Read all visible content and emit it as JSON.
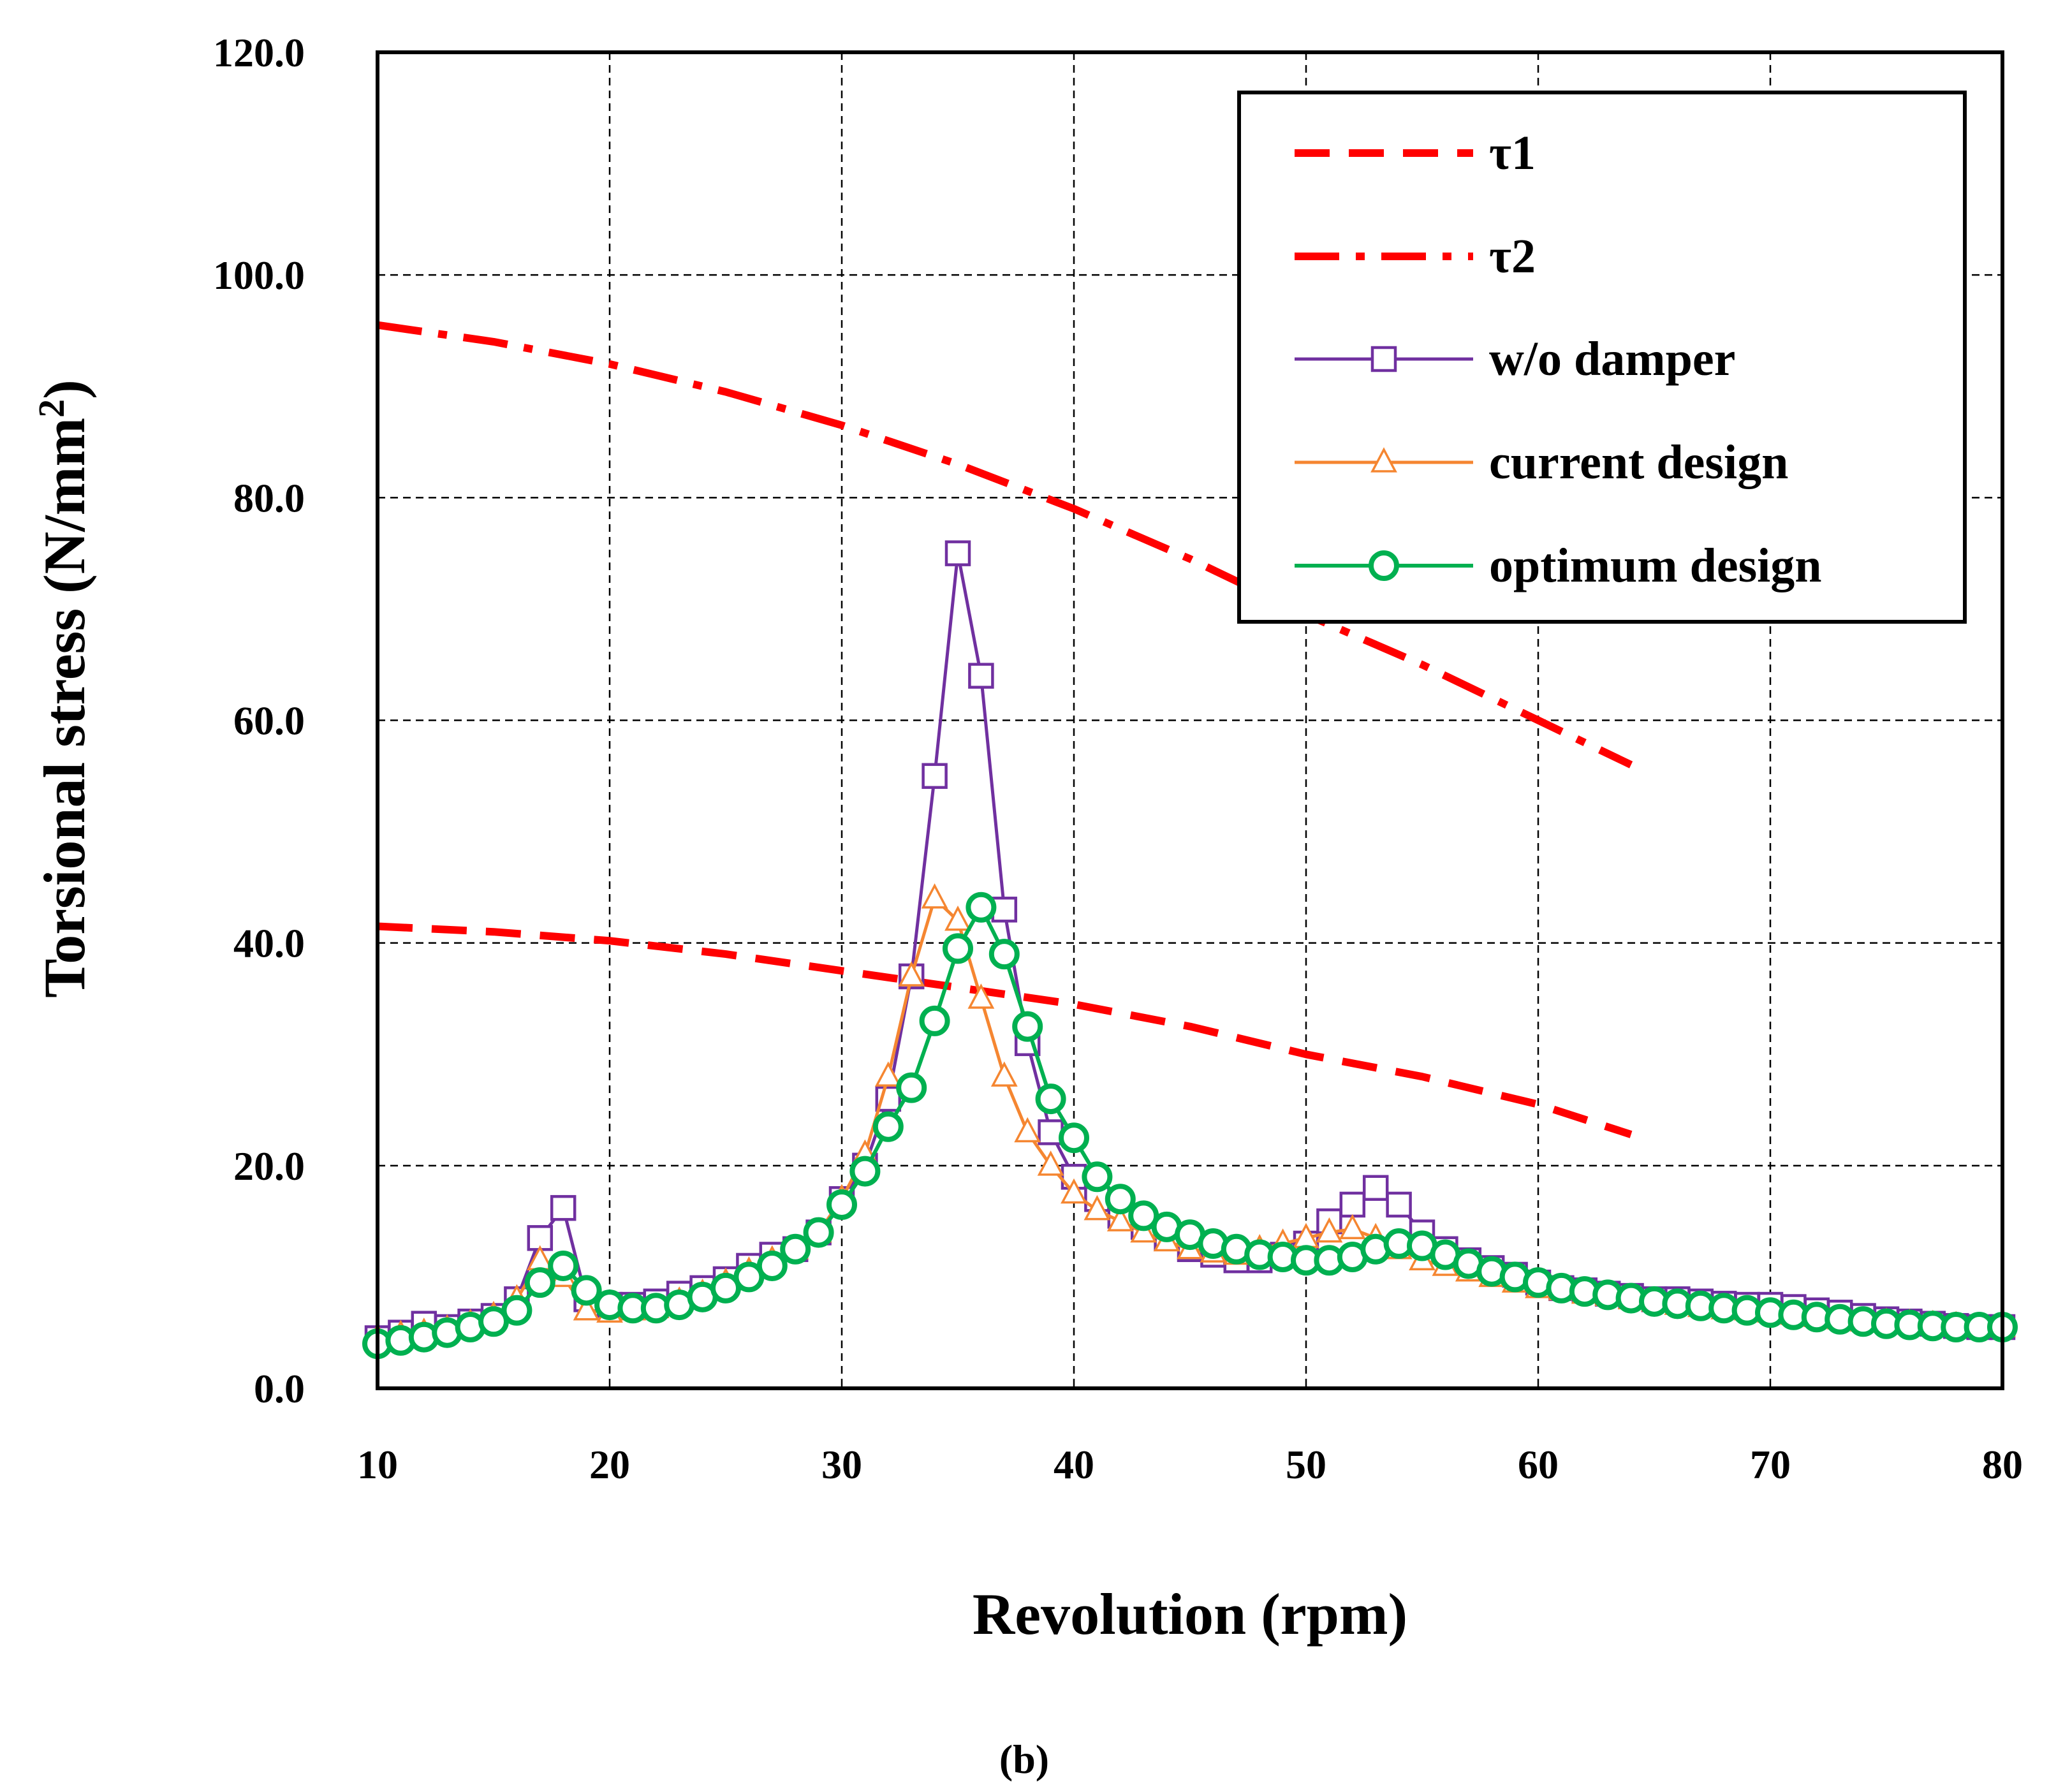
{
  "chart_data": {
    "type": "line",
    "caption": "(b)",
    "xlabel": "Revolution (rpm)",
    "ylabel": "Torsional stress (N/mm",
    "ylabel_sup": "2",
    "ylabel_close": ")",
    "xlim": [
      10,
      80
    ],
    "ylim": [
      0,
      120
    ],
    "xticks": [
      10,
      20,
      30,
      40,
      50,
      60,
      70,
      80
    ],
    "yticks": [
      0,
      20,
      40,
      60,
      80,
      100,
      120
    ],
    "ytick_labels": [
      "0.0",
      "20.0",
      "40.0",
      "60.0",
      "80.0",
      "100.0",
      "120.0"
    ],
    "grid": true,
    "legend_position": "top-right",
    "colors": {
      "tau": "#ff0000",
      "wo_damper": "#7030a0",
      "current": "#f58631",
      "optimum": "#00b050"
    },
    "series": [
      {
        "name": "τ1",
        "style": "dashed",
        "marker": "none",
        "x": [
          10,
          15,
          20,
          25,
          30,
          35,
          40,
          45,
          50,
          55,
          60,
          64
        ],
        "y": [
          41.5,
          41,
          40.2,
          39,
          37.5,
          36,
          34.5,
          32.5,
          30,
          28,
          25.5,
          22.8
        ]
      },
      {
        "name": "τ2",
        "style": "dashdot",
        "marker": "none",
        "x": [
          10,
          15,
          20,
          25,
          30,
          35,
          40,
          45,
          50,
          55,
          64
        ],
        "y": [
          95.5,
          94,
          92,
          89.5,
          86.5,
          83,
          79,
          74.5,
          69.5,
          65,
          56
        ]
      },
      {
        "name": "w/o damper",
        "style": "solid",
        "marker": "square",
        "x": [
          10,
          11,
          12,
          13,
          14,
          15,
          16,
          17,
          18,
          19,
          20,
          21,
          22,
          23,
          24,
          25,
          26,
          27,
          28,
          29,
          30,
          31,
          32,
          33,
          34,
          35,
          36,
          37,
          38,
          39,
          40,
          41,
          42,
          43,
          44,
          45,
          46,
          47,
          48,
          49,
          50,
          51,
          52,
          53,
          54,
          55,
          56,
          57,
          58,
          59,
          60,
          61,
          62,
          63,
          64,
          65,
          66,
          67,
          68,
          69,
          70,
          71,
          72,
          73,
          74,
          75,
          76,
          77,
          78,
          79,
          80
        ],
        "y": [
          4.5,
          5,
          5.8,
          5.5,
          6,
          6.5,
          8,
          13.5,
          16.2,
          8,
          7.5,
          7.5,
          7.8,
          8.5,
          9,
          9.8,
          11,
          12,
          12.5,
          14,
          17,
          20,
          26,
          37,
          55,
          75,
          64,
          43,
          31,
          23,
          19,
          17,
          15.5,
          14.5,
          13.5,
          12.5,
          12,
          11.5,
          11.5,
          12,
          13,
          15,
          16.5,
          18,
          16.5,
          14,
          12.5,
          11.5,
          10.8,
          10.2,
          9.5,
          9,
          8.8,
          8.5,
          8.3,
          8,
          8,
          7.8,
          7.6,
          7.5,
          7.5,
          7.3,
          7,
          6.8,
          6.5,
          6.2,
          6,
          5.8,
          5.6,
          5.5,
          5.5
        ]
      },
      {
        "name": "current design",
        "style": "solid",
        "marker": "triangle",
        "x": [
          10,
          11,
          12,
          13,
          14,
          15,
          16,
          17,
          18,
          19,
          20,
          21,
          22,
          23,
          24,
          25,
          26,
          27,
          28,
          29,
          30,
          31,
          32,
          33,
          34,
          35,
          36,
          37,
          38,
          39,
          40,
          41,
          42,
          43,
          44,
          45,
          46,
          47,
          48,
          49,
          50,
          51,
          52,
          53,
          54,
          55,
          56,
          57,
          58,
          59,
          60,
          61,
          62,
          63,
          64,
          65,
          66,
          67,
          68,
          69,
          70,
          71,
          72,
          73,
          74,
          75,
          76,
          77,
          78,
          79,
          80
        ],
        "y": [
          4.5,
          4.8,
          5,
          5.3,
          5.8,
          6.5,
          8,
          11.5,
          10,
          7,
          6.8,
          7,
          7.2,
          7.8,
          8.5,
          9.5,
          10.5,
          11.5,
          12.5,
          14,
          17,
          21,
          28,
          37,
          44,
          42,
          35,
          28,
          23,
          20,
          17.5,
          16,
          15,
          14,
          13.2,
          12.5,
          12.2,
          12,
          12.5,
          13,
          13.5,
          14,
          14.3,
          13.5,
          12.5,
          11.5,
          11,
          10.5,
          10,
          9.5,
          9,
          8.8,
          8.5,
          8.3,
          8,
          7.8,
          7.5,
          7.3,
          7.1,
          7,
          6.8,
          6.6,
          6.4,
          6.2,
          6,
          5.9,
          5.8,
          5.7,
          5.6,
          5.5,
          5.5
        ]
      },
      {
        "name": "optimum design",
        "style": "solid",
        "marker": "circle",
        "x": [
          10,
          11,
          12,
          13,
          14,
          15,
          16,
          17,
          18,
          19,
          20,
          21,
          22,
          23,
          24,
          25,
          26,
          27,
          28,
          29,
          30,
          31,
          32,
          33,
          34,
          35,
          36,
          37,
          38,
          39,
          40,
          41,
          42,
          43,
          44,
          45,
          46,
          47,
          48,
          49,
          50,
          51,
          52,
          53,
          54,
          55,
          56,
          57,
          58,
          59,
          60,
          61,
          62,
          63,
          64,
          65,
          66,
          67,
          68,
          69,
          70,
          71,
          72,
          73,
          74,
          75,
          76,
          77,
          78,
          79,
          80
        ],
        "y": [
          4,
          4.3,
          4.6,
          5,
          5.5,
          6,
          7,
          9.5,
          11,
          8.8,
          7.5,
          7.2,
          7.2,
          7.5,
          8.2,
          9,
          10,
          11,
          12.5,
          14,
          16.5,
          19.5,
          23.5,
          27,
          33,
          39.5,
          43.2,
          39,
          32.5,
          26,
          22.5,
          19,
          17,
          15.5,
          14.5,
          13.8,
          13,
          12.5,
          12,
          11.8,
          11.5,
          11.5,
          11.8,
          12.5,
          13,
          12.8,
          12,
          11.2,
          10.5,
          10,
          9.5,
          9,
          8.7,
          8.4,
          8.1,
          7.8,
          7.6,
          7.4,
          7.2,
          7,
          6.8,
          6.6,
          6.4,
          6.2,
          6,
          5.8,
          5.7,
          5.6,
          5.5,
          5.5,
          5.5
        ]
      }
    ]
  }
}
